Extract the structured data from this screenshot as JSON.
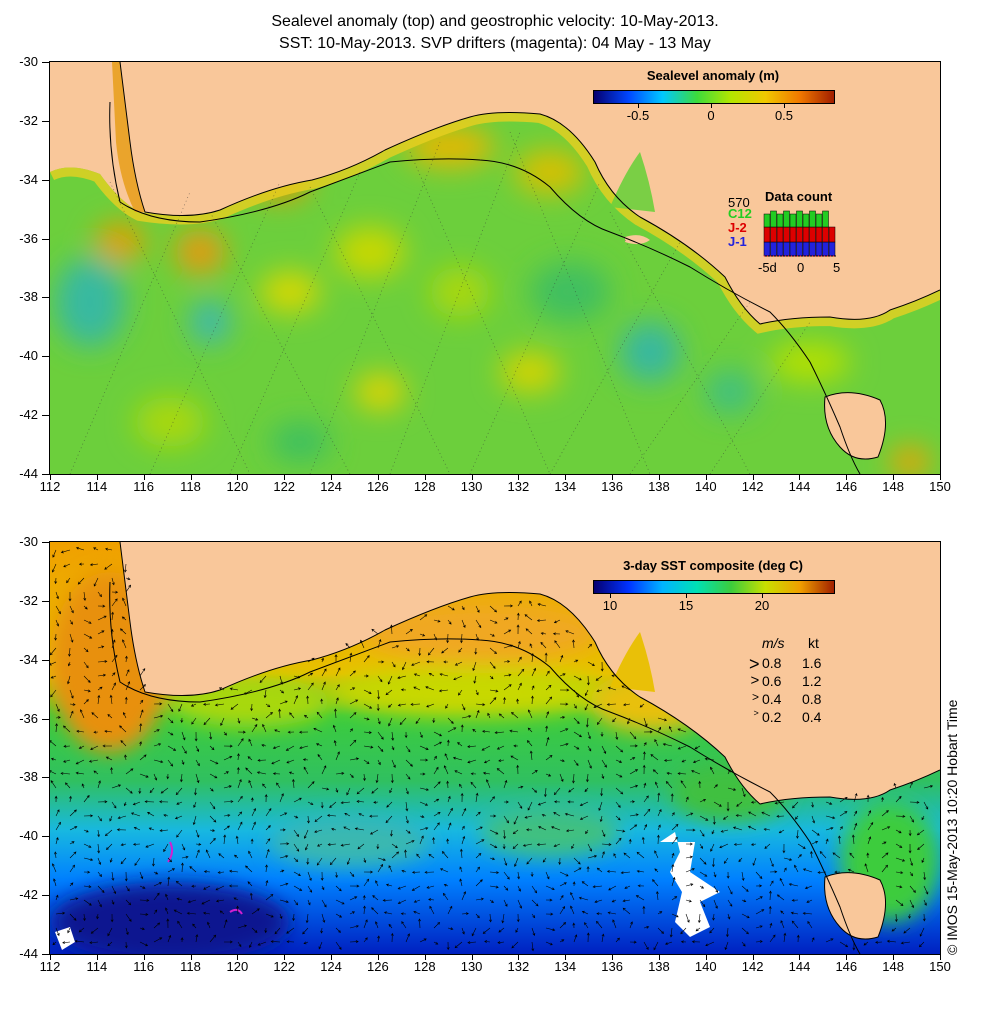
{
  "title": {
    "line1": "Sealevel anomaly (top) and geostrophic velocity: 10-May-2013.",
    "line2": "SST: 10-May-2013. SVP drifters (magenta): 04 May - 13 May"
  },
  "axes": {
    "lat_labels": [
      "-30",
      "-32",
      "-34",
      "-36",
      "-38",
      "-40",
      "-42",
      "-44"
    ],
    "lon_labels": [
      "112",
      "114",
      "116",
      "118",
      "120",
      "122",
      "124",
      "126",
      "128",
      "130",
      "132",
      "134",
      "136",
      "138",
      "140",
      "142",
      "144",
      "146",
      "148",
      "150"
    ],
    "lon_range": [
      112,
      150
    ],
    "lat_range": [
      -30,
      -44
    ]
  },
  "top_panel": {
    "colorbar_title": "Sealevel anomaly (m)",
    "colorbar_ticks": [
      "-0.5",
      "0",
      "0.5"
    ],
    "data_count": {
      "title": "Data count",
      "total": "570",
      "missions": [
        {
          "label": "C12",
          "color": "#22cc22"
        },
        {
          "label": "J-2",
          "color": "#dd0000"
        },
        {
          "label": "J-1",
          "color": "#2222dd"
        }
      ],
      "axis_labels": [
        "-5d",
        "0",
        "5"
      ]
    }
  },
  "bottom_panel": {
    "colorbar_title": "3-day SST composite (deg C)",
    "colorbar_ticks": [
      "10",
      "15",
      "20"
    ],
    "velocity_legend": {
      "header_ms": "m/s",
      "header_kt": "kt",
      "rows": [
        {
          "ms": "0.8",
          "kt": "1.6"
        },
        {
          "ms": "0.6",
          "kt": "1.2"
        },
        {
          "ms": "0.4",
          "kt": "0.8"
        },
        {
          "ms": "0.2",
          "kt": "0.4"
        }
      ]
    },
    "credit": "© IMOS 15-May-2013 10:20 Hobart Time"
  },
  "colors": {
    "land": "#f9c79a",
    "sla_scale": [
      "#06006e",
      "#0046ff",
      "#00c8ff",
      "#3cdc3c",
      "#b4e600",
      "#f0c800",
      "#f07800",
      "#a01e00"
    ],
    "sst_scale": [
      "#060070",
      "#0032ff",
      "#00b4ff",
      "#00e0b4",
      "#3ccc3c",
      "#c8e000",
      "#f0a000",
      "#a02000"
    ]
  }
}
